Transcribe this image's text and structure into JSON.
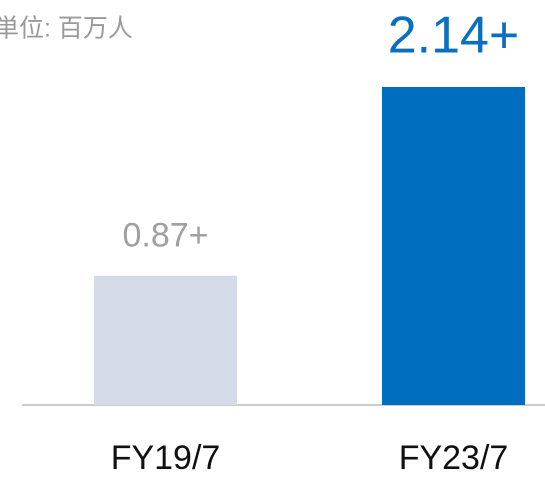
{
  "chart_data": {
    "type": "bar",
    "subtitle": "単位: 百万人",
    "categories": [
      "FY19/7",
      "FY23/7"
    ],
    "values": [
      0.87,
      2.14
    ],
    "value_labels": [
      "0.87+",
      "2.14+"
    ],
    "colors": [
      "#d5dbe8",
      "#006ebf"
    ]
  }
}
